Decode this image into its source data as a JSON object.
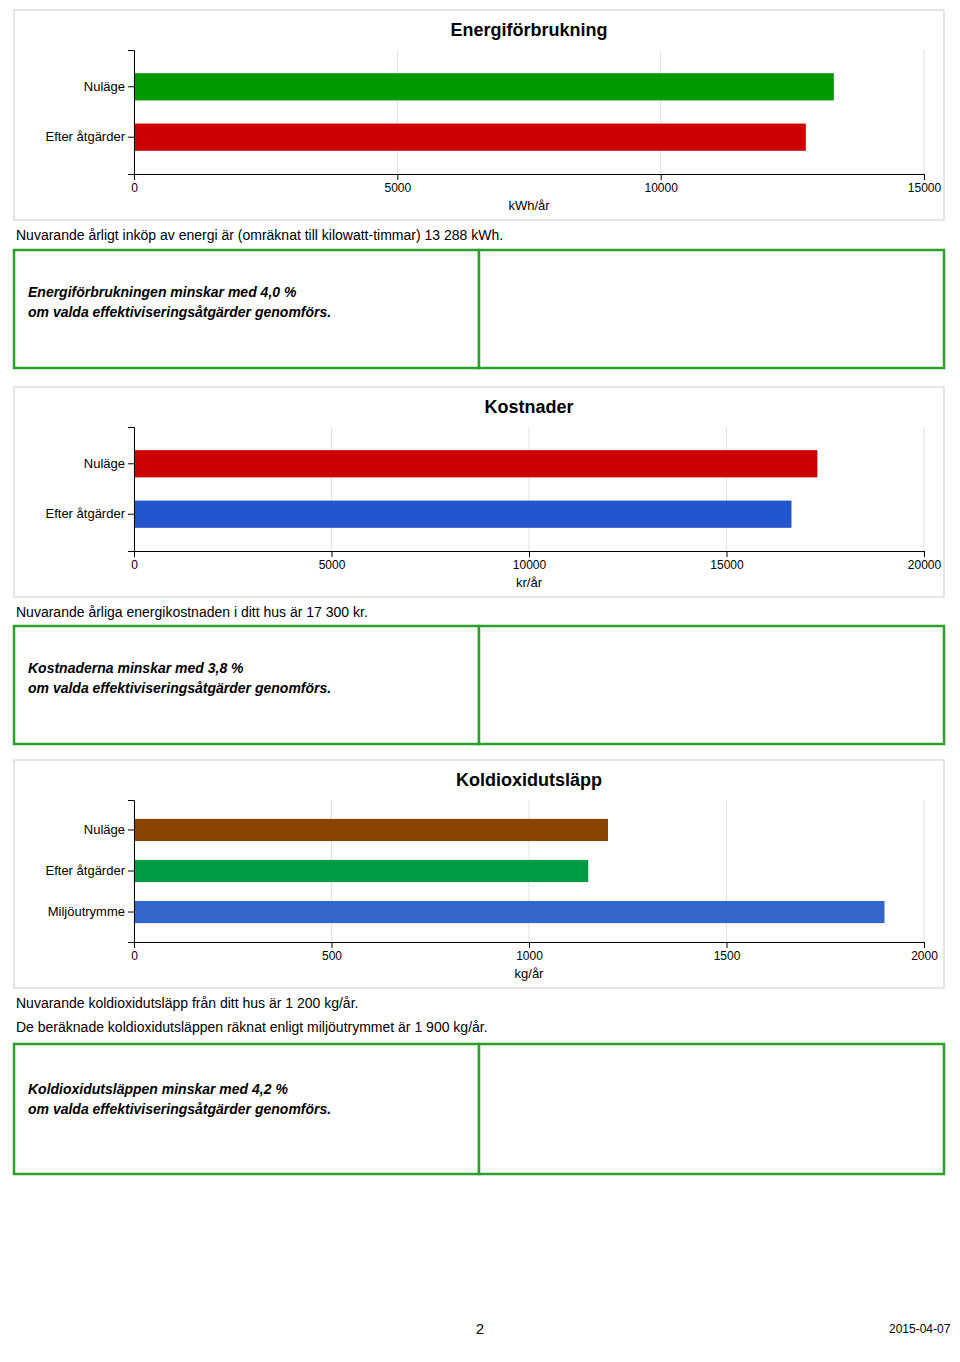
{
  "chart_data": [
    {
      "type": "bar",
      "orientation": "horizontal",
      "title": "Energiförbrukning",
      "categories": [
        "Efter åtgärder",
        "Nuläge"
      ],
      "values": [
        12756,
        13288
      ],
      "colors": [
        "#cc0000",
        "#009900"
      ],
      "xlabel": "kWh/år",
      "xlim": [
        0,
        15000
      ],
      "xticks": [
        0,
        5000,
        10000,
        15000
      ],
      "grid": true,
      "annotations": [
        "Nuvarande årligt inköp av energi är (omräknat till kilowatt-timmar) 13 288 kWh.",
        "Energiförbrukningen minskar med 4,0 %\nom valda effektiviseringsåtgärder genomförs."
      ]
    },
    {
      "type": "bar",
      "orientation": "horizontal",
      "title": "Kostnader",
      "categories": [
        "Efter åtgärder",
        "Nuläge"
      ],
      "values": [
        16645,
        17300
      ],
      "colors": [
        "#2255cc",
        "#cc0000"
      ],
      "xlabel": "kr/år",
      "xlim": [
        0,
        20000
      ],
      "xticks": [
        0,
        5000,
        10000,
        15000,
        20000
      ],
      "grid": true,
      "annotations": [
        "Nuvarande årliga energikostnaden i ditt hus är 17 300 kr.",
        "Kostnaderna minskar med 3,8 %\nom valda effektiviseringsåtgärder genomförs."
      ]
    },
    {
      "type": "bar",
      "orientation": "horizontal",
      "title": "Koldioxidutsläpp",
      "categories": [
        "Miljöutrymme",
        "Efter åtgärder",
        "Nuläge"
      ],
      "values": [
        1900,
        1150,
        1200
      ],
      "colors": [
        "#3366cc",
        "#009944",
        "#884400"
      ],
      "xlabel": "kg/år",
      "xlim": [
        0,
        2000
      ],
      "xticks": [
        0,
        500,
        1000,
        1500,
        2000
      ],
      "grid": true,
      "annotations": [
        "Nuvarande koldioxidutsläpp från ditt hus är 1 200 kg/år.",
        "De beräknade koldioxidutsläppen räknat enligt miljöutrymmet är 1 900 kg/år.",
        "Koldioxidutsläppen minskar med 4,2 %\nom valda effektiviseringsåtgärder genomförs.",
        "2",
        "2015-04-07"
      ]
    }
  ]
}
